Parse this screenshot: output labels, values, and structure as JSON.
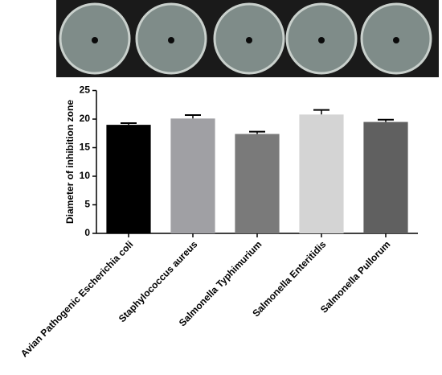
{
  "chart_data": {
    "type": "bar",
    "ylabel": "Diameter of inhibition zone",
    "categories": [
      "Avian Pathogenic Escherichia coli",
      "Staphylococcus aureus",
      "Salmonella Typhimurium",
      "Salmonella Enteritidis",
      "Salmonella Pullorum"
    ],
    "values": [
      19,
      20.1,
      17.4,
      20.8,
      19.5
    ],
    "errors": [
      0.3,
      0.6,
      0.4,
      0.8,
      0.4
    ],
    "colors": [
      "#000000",
      "#a0a0a4",
      "#7a7a7a",
      "#d4d4d4",
      "#606060"
    ],
    "ylim": [
      0,
      25
    ],
    "yticks": [
      0,
      5,
      10,
      15,
      20,
      25
    ],
    "grid": false
  }
}
